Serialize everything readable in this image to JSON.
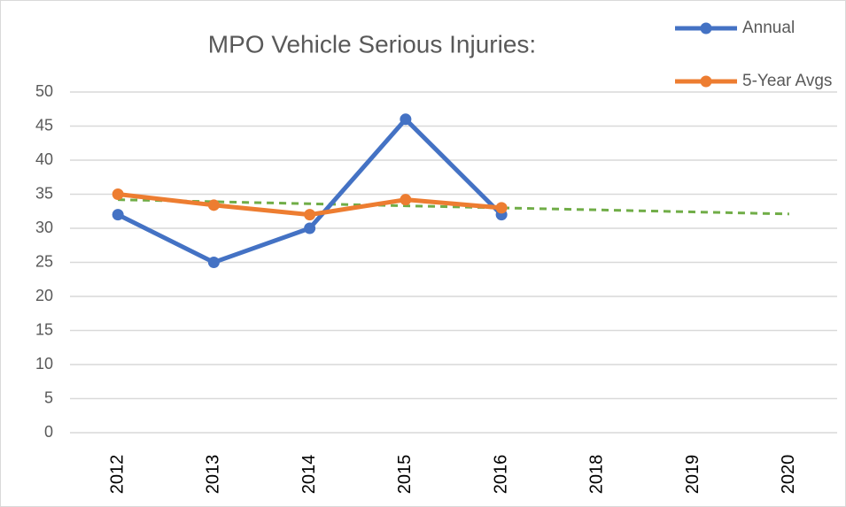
{
  "chart_data": {
    "type": "line",
    "title": "MPO Vehicle Serious Injuries:",
    "categories": [
      "2012",
      "2013",
      "2014",
      "2015",
      "2016",
      "2018",
      "2019",
      "2020"
    ],
    "series": [
      {
        "name": "Annual",
        "color": "#4472c4",
        "values": [
          32,
          25,
          30,
          46,
          32,
          null,
          null,
          null
        ]
      },
      {
        "name": "5-Year Avgs",
        "color": "#ed7d31",
        "values": [
          35,
          33.4,
          32,
          34.2,
          33,
          null,
          null,
          null
        ]
      },
      {
        "color": "#70ad47",
        "dashed": true,
        "values": [
          34.2,
          33.9,
          33.6,
          33.3,
          33.0,
          32.7,
          32.4,
          32.1
        ]
      }
    ],
    "ylim": [
      0,
      50
    ],
    "yticks": [
      0,
      5,
      10,
      15,
      20,
      25,
      30,
      35,
      40,
      45,
      50
    ],
    "grid": true,
    "legend": "top-right"
  }
}
